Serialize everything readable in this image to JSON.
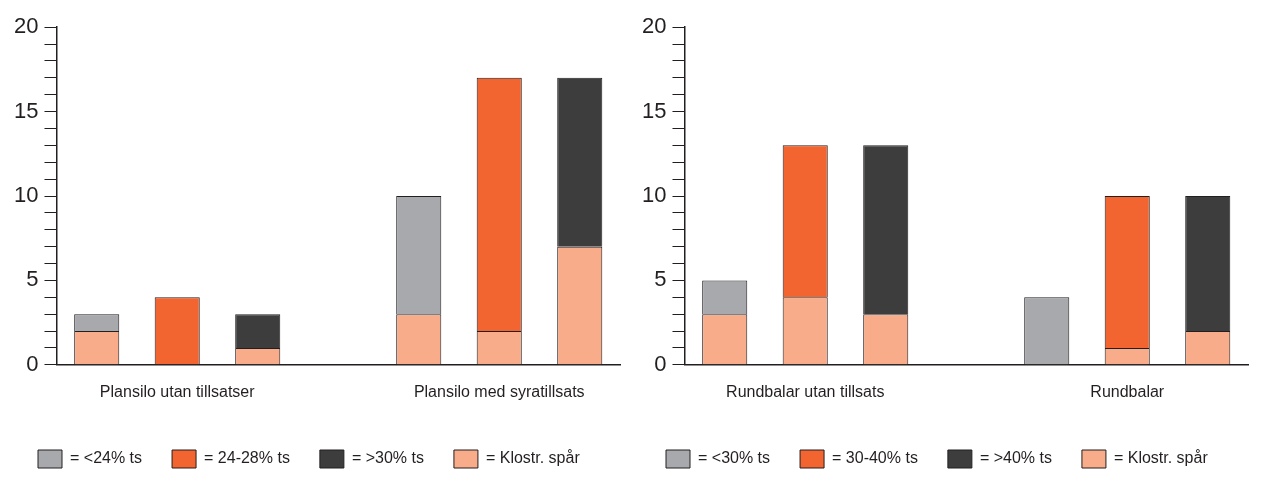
{
  "chart_data": [
    {
      "type": "bar",
      "stacked": true,
      "legend": "bottom",
      "categories": [
        null,
        "Plansilo utan tillsatser",
        null,
        null,
        null,
        "Plansilo med syratillsats",
        null
      ],
      "ylim": [
        0,
        20
      ],
      "yticks": [
        0,
        {
          "value": 1,
          "label": null
        },
        {
          "value": 2,
          "label": null
        },
        {
          "value": 3,
          "label": null
        },
        {
          "value": 4,
          "label": null
        },
        5,
        {
          "value": 6,
          "label": null
        },
        {
          "value": 7,
          "label": null
        },
        {
          "value": 8,
          "label": null
        },
        {
          "value": 9,
          "label": null
        },
        10,
        {
          "value": 11,
          "label": null
        },
        {
          "value": 12,
          "label": null
        },
        {
          "value": 13,
          "label": null
        },
        {
          "value": 14,
          "label": null
        },
        15,
        {
          "value": 16,
          "label": null
        },
        {
          "value": 17,
          "label": null
        },
        {
          "value": 18,
          "label": null
        },
        {
          "value": 19,
          "label": null
        },
        20
      ],
      "series": [
        {
          "name": "= Klostr. spår",
          "color": "#f9ac8a",
          "values": [
            2,
            null,
            1,
            null,
            3,
            2,
            7
          ]
        },
        {
          "name": "= <24% ts",
          "color": "#a7a9ac",
          "values": [
            1,
            null,
            null,
            null,
            7,
            null,
            null
          ]
        },
        {
          "name": "= 24-28% ts",
          "color": "#f26430",
          "values": [
            null,
            4,
            null,
            null,
            null,
            15,
            null
          ]
        },
        {
          "name": "= >30% ts",
          "color": "#3d3d3d",
          "values": [
            null,
            null,
            2,
            null,
            null,
            null,
            10
          ]
        }
      ]
    },
    {
      "type": "bar",
      "stacked": true,
      "legend": "bottom",
      "categories": [
        null,
        "Rundbalar utan tillsats",
        null,
        null,
        null,
        "Rundbalar",
        null
      ],
      "ylim": [
        0,
        20
      ],
      "yticks": [
        0,
        {
          "value": 1,
          "label": null
        },
        {
          "value": 2,
          "label": null
        },
        {
          "value": 3,
          "label": null
        },
        {
          "value": 4,
          "label": null
        },
        5,
        {
          "value": 6,
          "label": null
        },
        {
          "value": 7,
          "label": null
        },
        {
          "value": 8,
          "label": null
        },
        {
          "value": 9,
          "label": null
        },
        10,
        {
          "value": 11,
          "label": null
        },
        {
          "value": 12,
          "label": null
        },
        {
          "value": 13,
          "label": null
        },
        {
          "value": 14,
          "label": null
        },
        15,
        {
          "value": 16,
          "label": null
        },
        {
          "value": 17,
          "label": null
        },
        {
          "value": 18,
          "label": null
        },
        {
          "value": 19,
          "label": null
        },
        20
      ],
      "series": [
        {
          "name": "= Klostr. spår",
          "color": "#f9ac8a",
          "values": [
            3,
            4,
            3,
            null,
            null,
            1,
            2
          ]
        },
        {
          "name": "= <30% ts",
          "color": "#a7a9ac",
          "values": [
            2,
            null,
            null,
            null,
            4,
            null,
            null
          ]
        },
        {
          "name": "= 30-40% ts",
          "color": "#f26430",
          "values": [
            null,
            9,
            null,
            null,
            null,
            9,
            null
          ]
        },
        {
          "name": "= >40% ts",
          "color": "#3d3d3d",
          "values": [
            null,
            null,
            10,
            null,
            null,
            null,
            8
          ]
        }
      ]
    }
  ]
}
